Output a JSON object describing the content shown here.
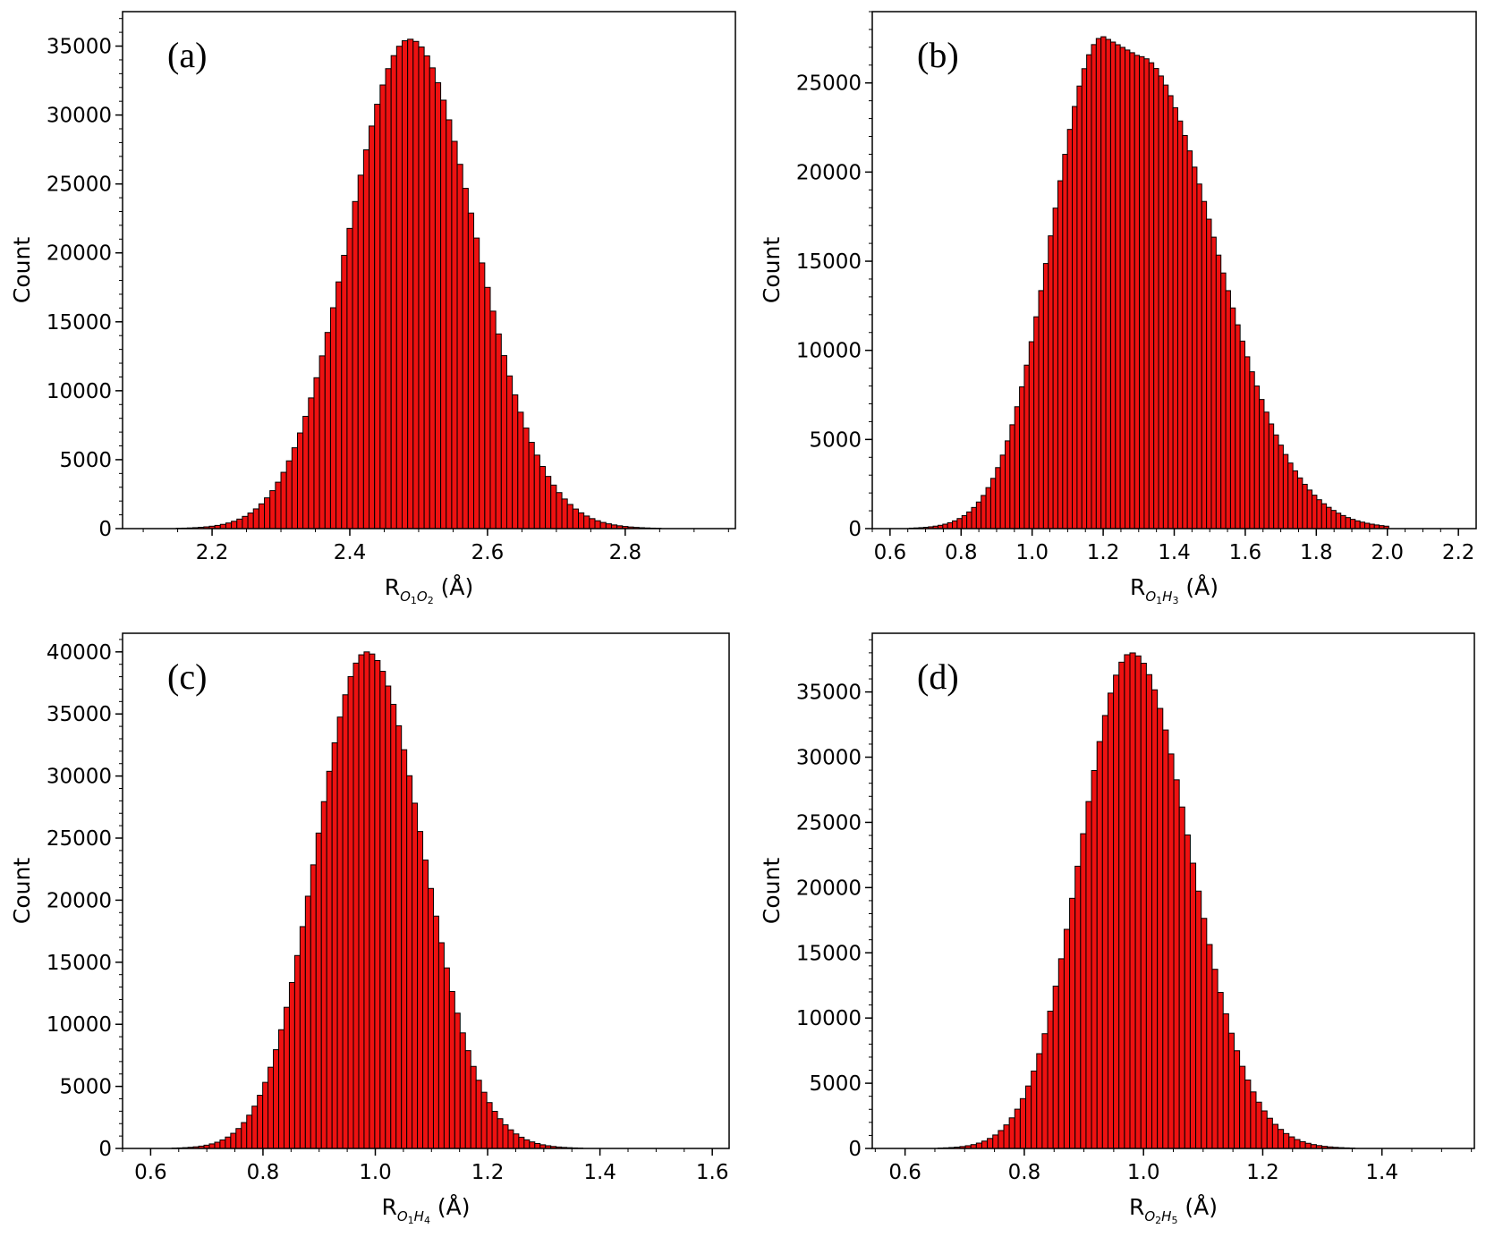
{
  "colors": {
    "bar_fill": "#ee1111",
    "bar_edge": "#000000",
    "frame": "#000000",
    "background": "#ffffff"
  },
  "chart_data": [
    {
      "type": "histogram",
      "panel": "(a)",
      "xlabel": {
        "base": "R",
        "sub1": "O",
        "sub1_idx": "1",
        "sub2": "O",
        "sub2_idx": "2",
        "unit": "(Å)"
      },
      "ylabel": "Count",
      "xlim": [
        2.07,
        2.96
      ],
      "ylim": [
        0,
        37500
      ],
      "xticks": [
        2.2,
        2.4,
        2.6,
        2.8
      ],
      "xtick_labels": [
        "2.2",
        "2.4",
        "2.6",
        "2.8"
      ],
      "yticks": [
        0,
        5000,
        10000,
        15000,
        20000,
        25000,
        30000,
        35000
      ],
      "ytick_labels": [
        "0",
        "5000",
        "10000",
        "15000",
        "20000",
        "25000",
        "30000",
        "35000"
      ],
      "bins": {
        "start": 2.1,
        "width": 0.008,
        "count": 104
      },
      "distribution": {
        "peak_x": 2.487,
        "peak_y": 35500,
        "sigma_left": 0.088,
        "sigma_right": 0.095,
        "skew": 0.0
      }
    },
    {
      "type": "histogram",
      "panel": "(b)",
      "xlabel": {
        "base": "R",
        "sub1": "O",
        "sub1_idx": "1",
        "sub2": "H",
        "sub2_idx": "3",
        "unit": "(Å)"
      },
      "ylabel": "Count",
      "xlim": [
        0.55,
        2.25
      ],
      "ylim": [
        0,
        29000
      ],
      "xticks": [
        0.6,
        0.8,
        1.0,
        1.2,
        1.4,
        1.6,
        1.8,
        2.0,
        2.2
      ],
      "xtick_labels": [
        "0.6",
        "0.8",
        "1.0",
        "1.2",
        "1.4",
        "1.6",
        "1.8",
        "2.0",
        "2.2"
      ],
      "yticks": [
        0,
        5000,
        10000,
        15000,
        20000,
        25000
      ],
      "ytick_labels": [
        "0",
        "5000",
        "10000",
        "15000",
        "20000",
        "25000"
      ],
      "bins": {
        "start": 0.6,
        "width": 0.0135,
        "count": 104
      },
      "distribution": {
        "peak_x": 1.2,
        "peak_y": 27600,
        "sigma_left": 0.145,
        "sigma_right": 0.215,
        "plateau": 0.1
      }
    },
    {
      "type": "histogram",
      "panel": "(c)",
      "xlabel": {
        "base": "R",
        "sub1": "O",
        "sub1_idx": "1",
        "sub2": "H",
        "sub2_idx": "4",
        "unit": "(Å)"
      },
      "ylabel": "Count",
      "xlim": [
        0.55,
        1.63
      ],
      "ylim": [
        0,
        41500
      ],
      "xticks": [
        0.6,
        0.8,
        1.0,
        1.2,
        1.4,
        1.6
      ],
      "xtick_labels": [
        "0.6",
        "0.8",
        "1.0",
        "1.2",
        "1.4",
        "1.6"
      ],
      "yticks": [
        0,
        5000,
        10000,
        15000,
        20000,
        25000,
        30000,
        35000,
        40000
      ],
      "ytick_labels": [
        "0",
        "5000",
        "10000",
        "15000",
        "20000",
        "25000",
        "30000",
        "35000",
        "40000"
      ],
      "bins": {
        "start": 0.6,
        "width": 0.0095,
        "count": 104
      },
      "distribution": {
        "peak_x": 0.985,
        "peak_y": 40000,
        "sigma_left": 0.09,
        "sigma_right": 0.1,
        "skew": 0.0
      }
    },
    {
      "type": "histogram",
      "panel": "(d)",
      "xlabel": {
        "base": "R",
        "sub1": "O",
        "sub1_idx": "2",
        "sub2": "H",
        "sub2_idx": "5",
        "unit": "(Å)"
      },
      "ylabel": "Count",
      "xlim": [
        0.545,
        1.555
      ],
      "ylim": [
        0,
        39500
      ],
      "xticks": [
        0.6,
        0.8,
        1.0,
        1.2,
        1.4
      ],
      "xtick_labels": [
        "0.6",
        "0.8",
        "1.0",
        "1.2",
        "1.4"
      ],
      "yticks": [
        0,
        5000,
        10000,
        15000,
        20000,
        25000,
        30000,
        35000
      ],
      "ytick_labels": [
        "0",
        "5000",
        "10000",
        "15000",
        "20000",
        "25000",
        "30000",
        "35000"
      ],
      "bins": {
        "start": 0.6,
        "width": 0.0092,
        "count": 104
      },
      "distribution": {
        "peak_x": 0.98,
        "peak_y": 38000,
        "sigma_left": 0.085,
        "sigma_right": 0.098,
        "skew": 0.0
      }
    }
  ]
}
